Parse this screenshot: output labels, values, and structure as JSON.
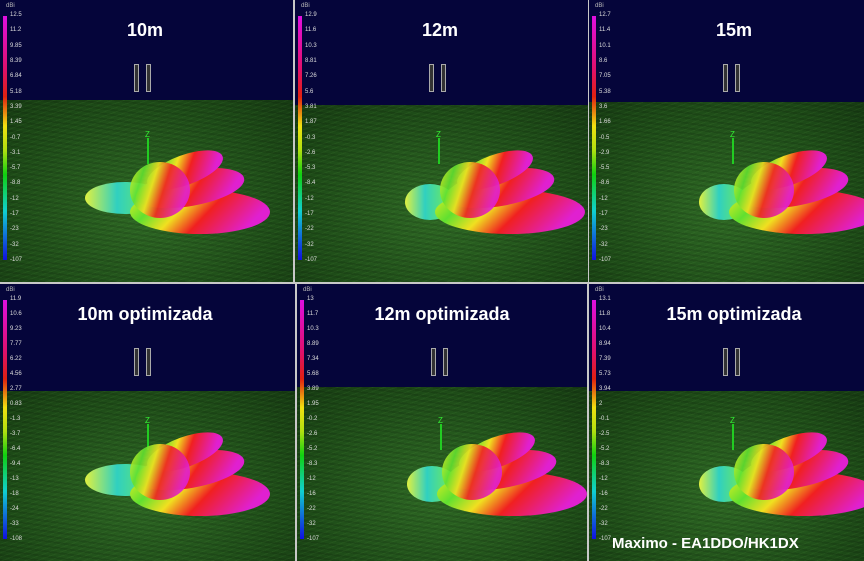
{
  "unit_label": "dBi",
  "axis_label": "Z",
  "panels": [
    {
      "title": "10m",
      "scale": [
        "12.5",
        "11.2",
        "9.85",
        "8.39",
        "6.84",
        "5.18",
        "3.39",
        "1.45",
        "-0.7",
        "-3.1",
        "-5.7",
        "-8.8",
        "-12",
        "-17",
        "-23",
        "-32",
        "-107"
      ]
    },
    {
      "title": "12m",
      "scale": [
        "12.9",
        "11.6",
        "10.3",
        "8.81",
        "7.26",
        "5.6",
        "3.81",
        "1.87",
        "-0.3",
        "-2.6",
        "-5.3",
        "-8.4",
        "-12",
        "-17",
        "-22",
        "-32",
        "-107"
      ]
    },
    {
      "title": "15m",
      "scale": [
        "12.7",
        "11.4",
        "10.1",
        "8.6",
        "7.05",
        "5.38",
        "3.6",
        "1.66",
        "-0.5",
        "-2.9",
        "-5.5",
        "-8.6",
        "-12",
        "-17",
        "-23",
        "-32",
        "-107"
      ]
    },
    {
      "title": "10m optimizada",
      "scale": [
        "11.9",
        "10.6",
        "9.23",
        "7.77",
        "6.22",
        "4.56",
        "2.77",
        "0.83",
        "-1.3",
        "-3.7",
        "-6.4",
        "-9.4",
        "-13",
        "-18",
        "-24",
        "-33",
        "-108"
      ]
    },
    {
      "title": "12m optimizada",
      "scale": [
        "13",
        "11.7",
        "10.3",
        "8.89",
        "7.34",
        "5.68",
        "3.89",
        "1.95",
        "-0.2",
        "-2.6",
        "-5.2",
        "-8.3",
        "-12",
        "-16",
        "-22",
        "-32",
        "-107"
      ]
    },
    {
      "title": "15m optimizada",
      "scale": [
        "13.1",
        "11.8",
        "10.4",
        "8.94",
        "7.39",
        "5.73",
        "3.94",
        "2",
        "-0.1",
        "-2.5",
        "-5.2",
        "-8.3",
        "-12",
        "-16",
        "-22",
        "-32",
        "-107"
      ]
    }
  ],
  "watermark": "Maximo - EA1DDO/HK1DX"
}
